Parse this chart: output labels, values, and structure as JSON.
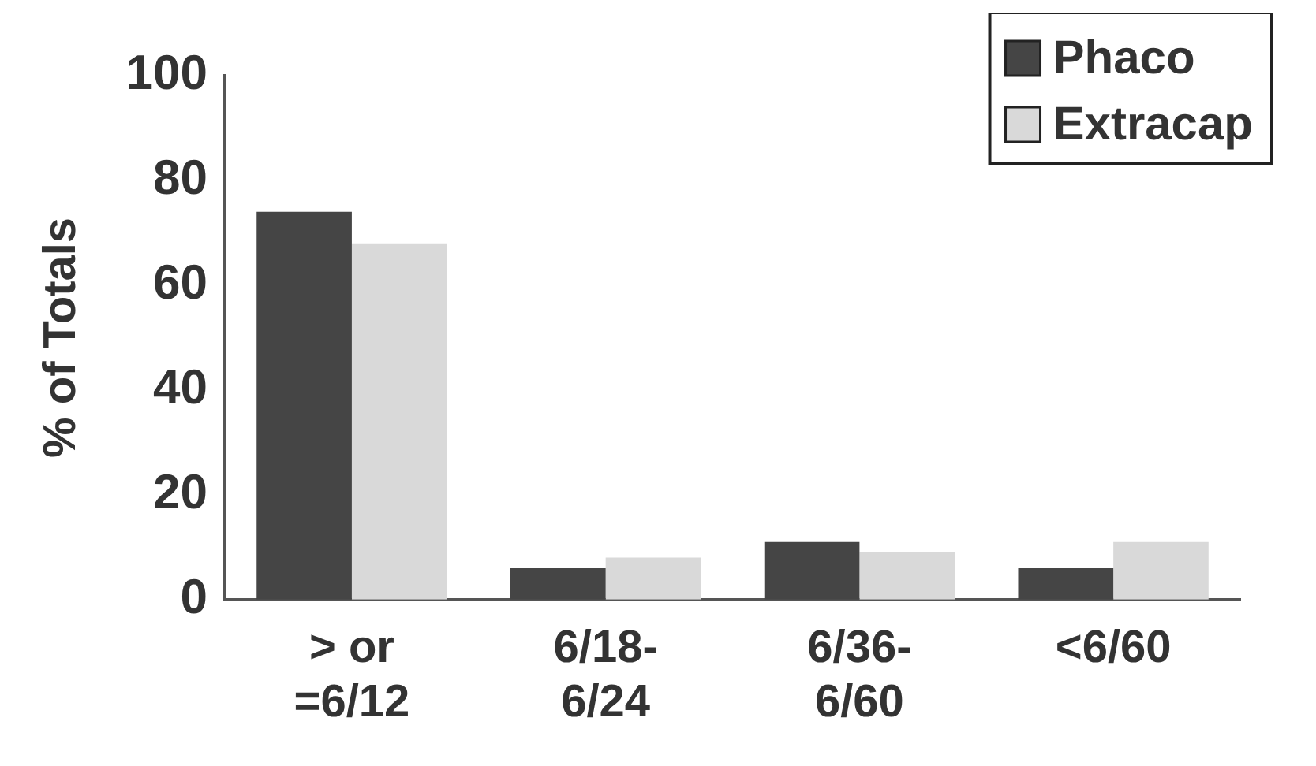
{
  "chart_data": {
    "type": "bar",
    "ylabel": "% of Totals",
    "categories": [
      "> or\n=6/12",
      "6/18-\n6/24",
      "6/36-\n6/60",
      "<6/60"
    ],
    "series": [
      {
        "name": "Phaco",
        "color": "#454545",
        "values": [
          74,
          6,
          11,
          6
        ]
      },
      {
        "name": "Extracap",
        "color": "#d9d9d9",
        "values": [
          68,
          8,
          9,
          11
        ]
      }
    ],
    "ylim": [
      0,
      100
    ],
    "yticks": [
      0,
      20,
      40,
      60,
      80,
      100
    ],
    "grid": false,
    "legend": "top right"
  }
}
